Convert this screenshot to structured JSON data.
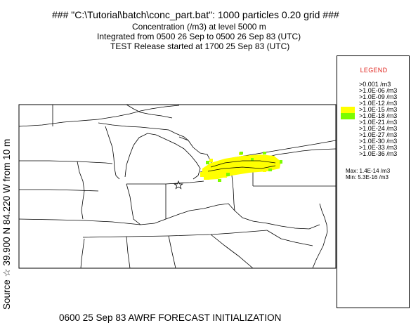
{
  "header": {
    "title": "### \"C:\\Tutorial\\batch\\conc_part.bat\": 1000 particles 0.20 grid ###",
    "line2": "Concentration  (/m3) at level  5000 m",
    "line3": "Integrated from 0500 26 Sep to 0500 26 Sep 83 (UTC)",
    "line4": "TEST Release started at 1700 25 Sep 83 (UTC)"
  },
  "side_label": "Source ☆  39.900  N  84.220  W    from   10 m",
  "legend": {
    "title": "LEGEND",
    "levels": [
      ">0.001 /m3",
      ">1.0E-06 /m3",
      ">1.0E-09 /m3",
      ">1.0E-12 /m3",
      ">1.0E-15 /m3",
      ">1.0E-18 /m3",
      ">1.0E-21 /m3",
      ">1.0E-24 /m3",
      ">1.0E-27 /m3",
      ">1.0E-30 /m3",
      ">1.0E-33 /m3",
      ">1.0E-36 /m3"
    ],
    "max_text": "Max: 1.4E-14 /m3",
    "min_text": "Min: 5.3E-16 /m3",
    "colors": {
      "level_1e15": "#ffff00",
      "level_1e18": "#7cfc00"
    }
  },
  "footer": "0600 25 Sep 83 AWRF FORECAST INITIALIZATION",
  "source": {
    "lat": "39.900 N",
    "lon": "84.220 W",
    "height": "10 m",
    "marker": "star-icon"
  }
}
